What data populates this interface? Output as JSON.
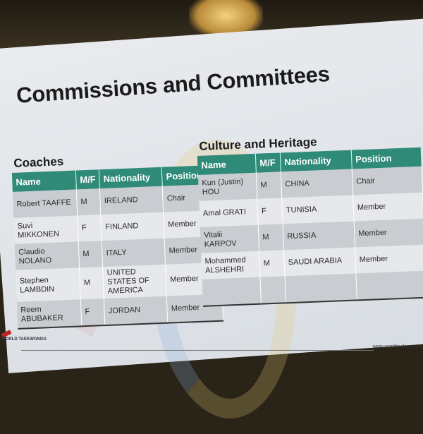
{
  "slide": {
    "title": "Commissions and Committees",
    "footer_logo": "WORLD TAEKWONDO",
    "footer_url": "www.worldtaekwondo.",
    "header_color": "#2f8a77"
  },
  "tables": [
    {
      "title": "Coaches",
      "columns": [
        "Name",
        "M/F",
        "Nationality",
        "Position"
      ],
      "rows": [
        [
          "Robert TAAFFE",
          "M",
          "IRELAND",
          "Chair"
        ],
        [
          "Suvi MIKKONEN",
          "F",
          "FINLAND",
          "Member"
        ],
        [
          "Claudio NOLANO",
          "M",
          "ITALY",
          "Member"
        ],
        [
          "Stephen LAMBDIN",
          "M",
          "UNITED STATES OF AMERICA",
          "Member"
        ],
        [
          "Reem ABUBAKER",
          "F",
          "JORDAN",
          "Member"
        ]
      ]
    },
    {
      "title": "Culture and Heritage",
      "columns": [
        "Name",
        "M/F",
        "Nationality",
        "Position"
      ],
      "rows": [
        [
          "Kun (Justin) HOU",
          "M",
          "CHINA",
          "Chair"
        ],
        [
          "Amal GRATI",
          "F",
          "TUNISIA",
          "Member"
        ],
        [
          "Vitalii KARPOV",
          "M",
          "RUSSIA",
          "Member"
        ],
        [
          "Mohammed ALSHEHRI",
          "M",
          "SAUDI ARABIA",
          "Member"
        ],
        [
          "",
          "",
          "",
          ""
        ]
      ]
    }
  ]
}
